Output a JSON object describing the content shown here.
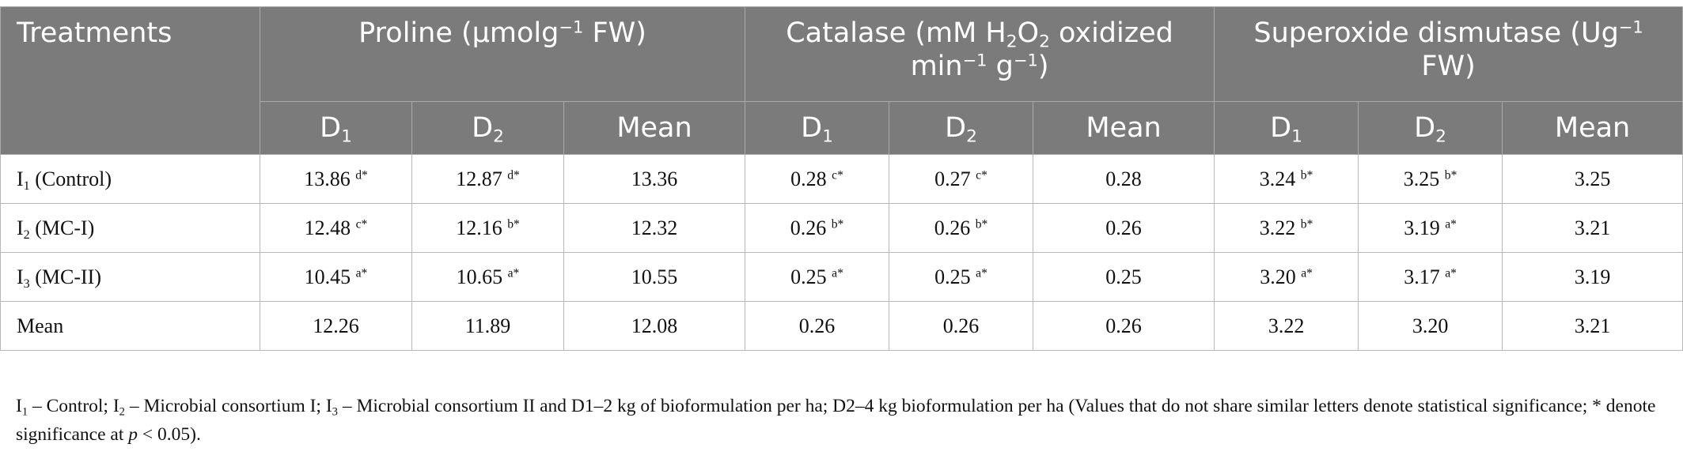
{
  "header": {
    "treatments": "Treatments",
    "groups": [
      {
        "pre": "Proline (μmolg",
        "sup": "−1",
        "post": " FW)"
      },
      {
        "pre": "Catalase (mM H",
        "sub": "2",
        "mid": "O",
        "sub2": "2",
        "mid2": " oxidized min",
        "sup": "−1",
        "mid3": " g",
        "sup2": "−1",
        "post": ")"
      },
      {
        "pre": "Superoxide dismutase (Ug",
        "sup": "−1",
        "post": " FW)"
      }
    ],
    "d1": {
      "base": "D",
      "sub": "1"
    },
    "d2": {
      "base": "D",
      "sub": "2"
    },
    "mean": "Mean"
  },
  "rows": [
    {
      "label": {
        "base": "I",
        "sub": "1",
        "text": " (Control)"
      },
      "cells": [
        {
          "v": "13.86",
          "s": "d*"
        },
        {
          "v": "12.87",
          "s": "d*"
        },
        {
          "v": "13.36",
          "s": ""
        },
        {
          "v": "0.28",
          "s": "c*"
        },
        {
          "v": "0.27",
          "s": "c*"
        },
        {
          "v": "0.28",
          "s": ""
        },
        {
          "v": "3.24",
          "s": "b*"
        },
        {
          "v": "3.25",
          "s": "b*"
        },
        {
          "v": "3.25",
          "s": ""
        }
      ]
    },
    {
      "label": {
        "base": "I",
        "sub": "2",
        "text": " (MC-I)"
      },
      "cells": [
        {
          "v": "12.48",
          "s": "c*"
        },
        {
          "v": "12.16",
          "s": "b*"
        },
        {
          "v": "12.32",
          "s": ""
        },
        {
          "v": "0.26",
          "s": "b*"
        },
        {
          "v": "0.26",
          "s": "b*"
        },
        {
          "v": "0.26",
          "s": ""
        },
        {
          "v": "3.22",
          "s": "b*"
        },
        {
          "v": "3.19",
          "s": "a*"
        },
        {
          "v": "3.21",
          "s": ""
        }
      ]
    },
    {
      "label": {
        "base": "I",
        "sub": "3",
        "text": " (MC-II)"
      },
      "cells": [
        {
          "v": "10.45",
          "s": "a*"
        },
        {
          "v": "10.65",
          "s": "a*"
        },
        {
          "v": "10.55",
          "s": ""
        },
        {
          "v": "0.25",
          "s": "a*"
        },
        {
          "v": "0.25",
          "s": "a*"
        },
        {
          "v": "0.25",
          "s": ""
        },
        {
          "v": "3.20",
          "s": "a*"
        },
        {
          "v": "3.17",
          "s": "a*"
        },
        {
          "v": "3.19",
          "s": ""
        }
      ]
    },
    {
      "label": {
        "base": "Mean",
        "sub": "",
        "text": ""
      },
      "cells": [
        {
          "v": "12.26",
          "s": ""
        },
        {
          "v": "11.89",
          "s": ""
        },
        {
          "v": "12.08",
          "s": ""
        },
        {
          "v": "0.26",
          "s": ""
        },
        {
          "v": "0.26",
          "s": ""
        },
        {
          "v": "0.26",
          "s": ""
        },
        {
          "v": "3.22",
          "s": ""
        },
        {
          "v": "3.20",
          "s": ""
        },
        {
          "v": "3.21",
          "s": ""
        }
      ]
    }
  ],
  "footnote": {
    "i1": "I",
    "i1_sub": "1",
    "t1": " – Control; ",
    "i2": "I",
    "i2_sub": "2",
    "t2": " – Microbial consortium I; ",
    "i3": "I",
    "i3_sub": "3",
    "t3": " – Microbial consortium II and D1–2 kg of bioformulation per ha; D2–4 kg bioformulation per ha (Values that do not share similar letters denote statistical significance; * denote significance at ",
    "p": "p",
    "t4": " < 0.05)."
  },
  "colors": {
    "header_bg": "#7b7b7b",
    "header_text": "#ffffff",
    "border": "#b8b8b8"
  }
}
